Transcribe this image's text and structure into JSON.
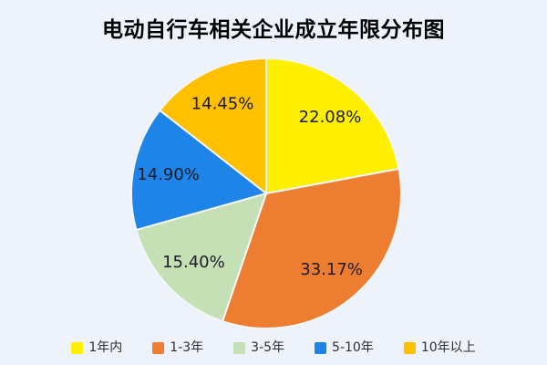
{
  "colors": {
    "background": "#EEF2FB",
    "title_text": "#000000",
    "label_text": "#1C1C28",
    "legend_text": "#2E2E36",
    "slice_border": "#F3F6FB"
  },
  "chart_data": {
    "type": "pie",
    "title": "电动自行车相关企业成立年限分布图",
    "categories": [
      "1年内",
      "1-3年",
      "3-5年",
      "5-10年",
      "10年以上"
    ],
    "values": [
      22.08,
      33.17,
      15.4,
      14.9,
      14.45
    ],
    "labels": [
      "22.08%",
      "33.17%",
      "15.40%",
      "14.90%",
      "14.45%"
    ],
    "slice_colors": [
      "#FEF000",
      "#ED7D31",
      "#C5E0B4",
      "#1E84E8",
      "#FFC000"
    ],
    "start_angle_deg": 0,
    "direction": "clockwise",
    "legend_position": "bottom",
    "labels_inside": true
  }
}
